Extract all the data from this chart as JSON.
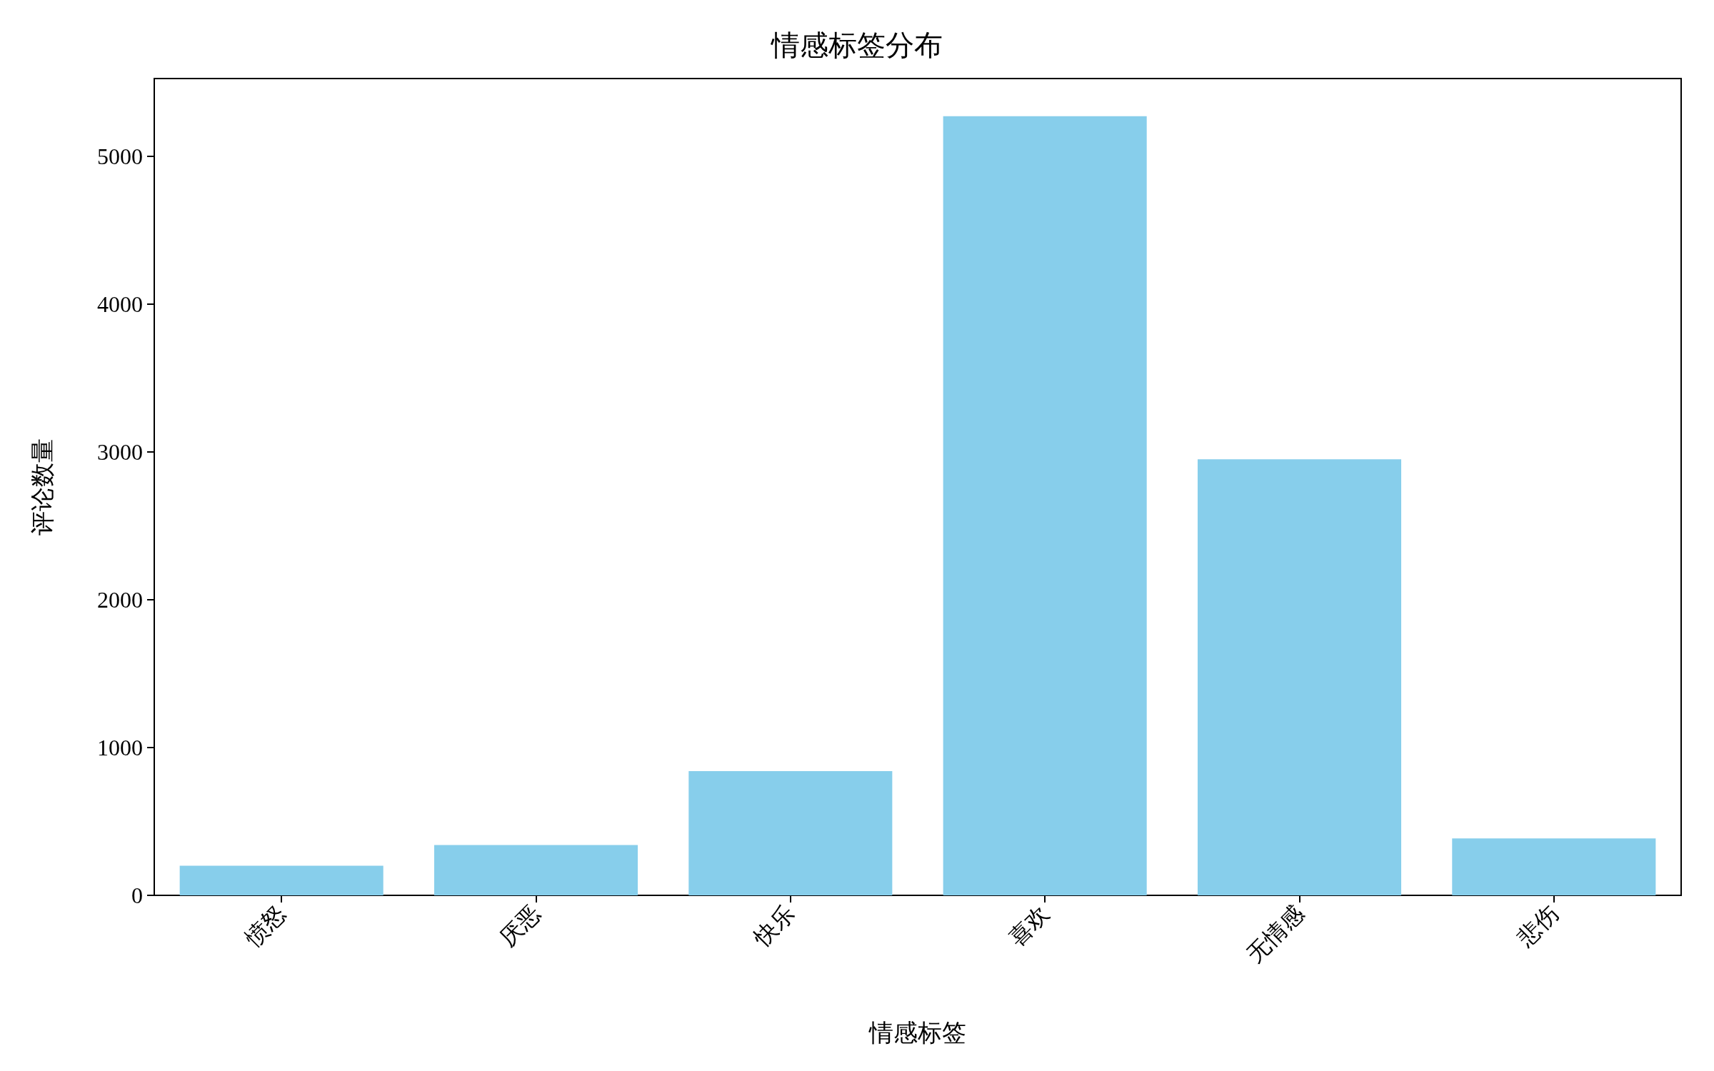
{
  "chart_data": {
    "type": "bar",
    "title": "情感标签分布",
    "xlabel": "情感标签",
    "ylabel": "评论数量",
    "categories": [
      "愤怒",
      "厌恶",
      "快乐",
      "喜欢",
      "无情感",
      "悲伤"
    ],
    "values": [
      200,
      340,
      840,
      5270,
      2950,
      385
    ],
    "color": "#87ceeb",
    "ylim": [
      0,
      5525
    ],
    "yticks": [
      0,
      1000,
      2000,
      3000,
      4000,
      5000
    ],
    "grid": false
  }
}
